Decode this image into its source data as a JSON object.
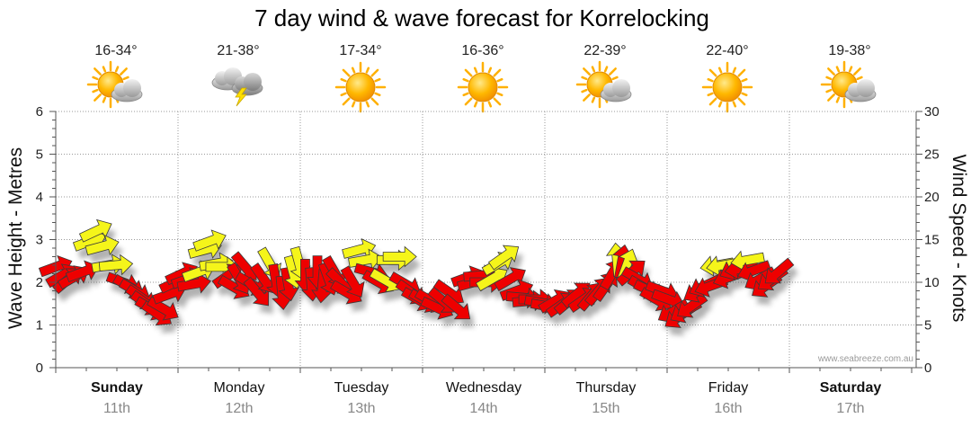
{
  "chart_data": {
    "type": "scatter",
    "title": "7 day wind & wave forecast for Korrelocking",
    "y_left": {
      "label": "Wave Height - Metres",
      "range": [
        0,
        6
      ],
      "ticks": [
        0,
        1,
        2,
        3,
        4,
        5,
        6
      ]
    },
    "y_right": {
      "label": "Wind Speed - Knots",
      "range": [
        0,
        30
      ],
      "ticks": [
        0,
        5,
        10,
        15,
        20,
        25,
        30
      ]
    },
    "grid": true,
    "days": [
      {
        "name": "Sunday",
        "date": "11th",
        "temp": "16-34°",
        "icon": "sun-cloud-icon",
        "bold": true
      },
      {
        "name": "Monday",
        "date": "12th",
        "temp": "21-38°",
        "icon": "storm-cloud-icon",
        "bold": false
      },
      {
        "name": "Tuesday",
        "date": "13th",
        "temp": "17-34°",
        "icon": "sun-icon",
        "bold": false
      },
      {
        "name": "Wednesday",
        "date": "14th",
        "temp": "16-36°",
        "icon": "sun-icon",
        "bold": false
      },
      {
        "name": "Thursday",
        "date": "15th",
        "temp": "22-39°",
        "icon": "sun-cloud-icon",
        "bold": false
      },
      {
        "name": "Friday",
        "date": "16th",
        "temp": "22-40°",
        "icon": "sun-icon",
        "bold": false
      },
      {
        "name": "Saturday",
        "date": "17th",
        "temp": "19-38°",
        "icon": "sun-cloud-icon",
        "bold": true
      }
    ],
    "arrow_colors": {
      "strong": "#ee0000",
      "moderate": "#f5f51a"
    },
    "wind_series": [
      {
        "t": 0.0,
        "kts": 11.8,
        "dir": 250,
        "c": "strong"
      },
      {
        "t": 0.05,
        "kts": 10.8,
        "dir": 240,
        "c": "strong"
      },
      {
        "t": 0.1,
        "kts": 10.3,
        "dir": 230,
        "c": "strong"
      },
      {
        "t": 0.15,
        "kts": 10.6,
        "dir": 240,
        "c": "strong"
      },
      {
        "t": 0.22,
        "kts": 11.2,
        "dir": 250,
        "c": "strong"
      },
      {
        "t": 0.28,
        "kts": 14.8,
        "dir": 250,
        "c": "moderate"
      },
      {
        "t": 0.33,
        "kts": 16.0,
        "dir": 245,
        "c": "moderate"
      },
      {
        "t": 0.38,
        "kts": 14.2,
        "dir": 255,
        "c": "moderate"
      },
      {
        "t": 0.43,
        "kts": 12.0,
        "dir": 260,
        "c": "moderate"
      },
      {
        "t": 0.49,
        "kts": 12.0,
        "dir": 265,
        "c": "moderate"
      },
      {
        "t": 0.55,
        "kts": 10.0,
        "dir": 290,
        "c": "strong"
      },
      {
        "t": 0.6,
        "kts": 9.5,
        "dir": 300,
        "c": "strong"
      },
      {
        "t": 0.65,
        "kts": 9.0,
        "dir": 300,
        "c": "strong"
      },
      {
        "t": 0.7,
        "kts": 8.2,
        "dir": 305,
        "c": "strong"
      },
      {
        "t": 0.74,
        "kts": 7.5,
        "dir": 305,
        "c": "strong"
      },
      {
        "t": 0.78,
        "kts": 6.9,
        "dir": 300,
        "c": "strong"
      },
      {
        "t": 0.83,
        "kts": 6.3,
        "dir": 305,
        "c": "strong"
      },
      {
        "t": 0.88,
        "kts": 6.9,
        "dir": 300,
        "c": "strong"
      },
      {
        "t": 0.93,
        "kts": 8.6,
        "dir": 250,
        "c": "strong"
      },
      {
        "t": 0.98,
        "kts": 10.0,
        "dir": 245,
        "c": "strong"
      },
      {
        "t": 1.03,
        "kts": 11.0,
        "dir": 245,
        "c": "strong"
      },
      {
        "t": 1.08,
        "kts": 10.4,
        "dir": 250,
        "c": "strong"
      },
      {
        "t": 1.13,
        "kts": 9.8,
        "dir": 260,
        "c": "strong"
      },
      {
        "t": 1.17,
        "kts": 11.2,
        "dir": 250,
        "c": "moderate"
      },
      {
        "t": 1.22,
        "kts": 13.8,
        "dir": 255,
        "c": "moderate"
      },
      {
        "t": 1.26,
        "kts": 14.8,
        "dir": 250,
        "c": "moderate"
      },
      {
        "t": 1.31,
        "kts": 12.2,
        "dir": 260,
        "c": "moderate"
      },
      {
        "t": 1.36,
        "kts": 11.8,
        "dir": 270,
        "c": "moderate"
      },
      {
        "t": 1.41,
        "kts": 10.8,
        "dir": 235,
        "c": "strong"
      },
      {
        "t": 1.46,
        "kts": 9.4,
        "dir": 300,
        "c": "strong"
      },
      {
        "t": 1.5,
        "kts": 10.4,
        "dir": 330,
        "c": "strong"
      },
      {
        "t": 1.55,
        "kts": 11.8,
        "dir": 320,
        "c": "strong"
      },
      {
        "t": 1.6,
        "kts": 9.8,
        "dir": 300,
        "c": "strong"
      },
      {
        "t": 1.65,
        "kts": 8.8,
        "dir": 320,
        "c": "strong"
      },
      {
        "t": 1.7,
        "kts": 10.4,
        "dir": 325,
        "c": "strong"
      },
      {
        "t": 1.75,
        "kts": 12.2,
        "dir": 330,
        "c": "moderate"
      },
      {
        "t": 1.8,
        "kts": 10.2,
        "dir": 350,
        "c": "strong"
      },
      {
        "t": 1.85,
        "kts": 8.8,
        "dir": 355,
        "c": "strong"
      },
      {
        "t": 1.9,
        "kts": 9.8,
        "dir": 350,
        "c": "strong"
      },
      {
        "t": 1.94,
        "kts": 11.2,
        "dir": 345,
        "c": "moderate"
      },
      {
        "t": 1.99,
        "kts": 12.2,
        "dir": 345,
        "c": "moderate"
      },
      {
        "t": 2.04,
        "kts": 10.8,
        "dir": 0,
        "c": "strong"
      },
      {
        "t": 2.09,
        "kts": 9.8,
        "dir": 355,
        "c": "strong"
      },
      {
        "t": 2.14,
        "kts": 11.2,
        "dir": 0,
        "c": "strong"
      },
      {
        "t": 2.18,
        "kts": 9.6,
        "dir": 5,
        "c": "strong"
      },
      {
        "t": 2.23,
        "kts": 10.4,
        "dir": 340,
        "c": "strong"
      },
      {
        "t": 2.28,
        "kts": 11.2,
        "dir": 330,
        "c": "strong"
      },
      {
        "t": 2.33,
        "kts": 10.0,
        "dir": 315,
        "c": "strong"
      },
      {
        "t": 2.38,
        "kts": 8.8,
        "dir": 300,
        "c": "strong"
      },
      {
        "t": 2.43,
        "kts": 10.0,
        "dir": 330,
        "c": "strong"
      },
      {
        "t": 2.48,
        "kts": 13.8,
        "dir": 255,
        "c": "moderate"
      },
      {
        "t": 2.53,
        "kts": 12.6,
        "dir": 260,
        "c": "moderate"
      },
      {
        "t": 2.58,
        "kts": 11.2,
        "dir": 285,
        "c": "strong"
      },
      {
        "t": 2.64,
        "kts": 10.0,
        "dir": 300,
        "c": "strong"
      },
      {
        "t": 2.7,
        "kts": 10.2,
        "dir": 300,
        "c": "moderate"
      },
      {
        "t": 2.76,
        "kts": 12.6,
        "dir": 270,
        "c": "moderate"
      },
      {
        "t": 2.81,
        "kts": 13.0,
        "dir": 270,
        "c": "moderate"
      },
      {
        "t": 2.86,
        "kts": 9.8,
        "dir": 300,
        "c": "strong"
      },
      {
        "t": 2.91,
        "kts": 8.8,
        "dir": 305,
        "c": "strong"
      },
      {
        "t": 2.96,
        "kts": 8.0,
        "dir": 300,
        "c": "strong"
      },
      {
        "t": 3.02,
        "kts": 7.8,
        "dir": 300,
        "c": "strong"
      },
      {
        "t": 3.07,
        "kts": 7.8,
        "dir": 300,
        "c": "strong"
      },
      {
        "t": 3.12,
        "kts": 7.0,
        "dir": 295,
        "c": "strong"
      },
      {
        "t": 3.17,
        "kts": 7.8,
        "dir": 310,
        "c": "strong"
      },
      {
        "t": 3.22,
        "kts": 8.8,
        "dir": 305,
        "c": "strong"
      },
      {
        "t": 3.28,
        "kts": 7.0,
        "dir": 310,
        "c": "strong"
      },
      {
        "t": 3.37,
        "kts": 10.6,
        "dir": 250,
        "c": "strong"
      },
      {
        "t": 3.42,
        "kts": 10.0,
        "dir": 255,
        "c": "strong"
      },
      {
        "t": 3.47,
        "kts": 10.8,
        "dir": 265,
        "c": "strong"
      },
      {
        "t": 3.52,
        "kts": 10.0,
        "dir": 270,
        "c": "strong"
      },
      {
        "t": 3.57,
        "kts": 10.4,
        "dir": 240,
        "c": "moderate"
      },
      {
        "t": 3.62,
        "kts": 12.2,
        "dir": 240,
        "c": "moderate"
      },
      {
        "t": 3.67,
        "kts": 13.0,
        "dir": 235,
        "c": "moderate"
      },
      {
        "t": 3.72,
        "kts": 10.4,
        "dir": 240,
        "c": "strong"
      },
      {
        "t": 3.77,
        "kts": 9.0,
        "dir": 250,
        "c": "strong"
      },
      {
        "t": 3.82,
        "kts": 8.2,
        "dir": 275,
        "c": "strong"
      },
      {
        "t": 3.87,
        "kts": 7.8,
        "dir": 265,
        "c": "strong"
      },
      {
        "t": 3.92,
        "kts": 8.0,
        "dir": 270,
        "c": "strong"
      },
      {
        "t": 3.97,
        "kts": 7.6,
        "dir": 280,
        "c": "strong"
      },
      {
        "t": 4.02,
        "kts": 7.2,
        "dir": 280,
        "c": "strong"
      },
      {
        "t": 4.08,
        "kts": 7.8,
        "dir": 240,
        "c": "strong"
      },
      {
        "t": 4.14,
        "kts": 7.4,
        "dir": 235,
        "c": "strong"
      },
      {
        "t": 4.2,
        "kts": 7.8,
        "dir": 230,
        "c": "strong"
      },
      {
        "t": 4.26,
        "kts": 8.6,
        "dir": 230,
        "c": "strong"
      },
      {
        "t": 4.32,
        "kts": 8.0,
        "dir": 235,
        "c": "strong"
      },
      {
        "t": 4.38,
        "kts": 8.4,
        "dir": 220,
        "c": "strong"
      },
      {
        "t": 4.44,
        "kts": 9.0,
        "dir": 220,
        "c": "strong"
      },
      {
        "t": 4.5,
        "kts": 9.6,
        "dir": 215,
        "c": "strong"
      },
      {
        "t": 4.55,
        "kts": 11.0,
        "dir": 210,
        "c": "strong"
      },
      {
        "t": 4.59,
        "kts": 12.6,
        "dir": 175,
        "c": "moderate"
      },
      {
        "t": 4.63,
        "kts": 12.4,
        "dir": 190,
        "c": "strong"
      },
      {
        "t": 4.67,
        "kts": 12.0,
        "dir": 200,
        "c": "moderate"
      },
      {
        "t": 4.71,
        "kts": 11.2,
        "dir": 230,
        "c": "strong"
      },
      {
        "t": 4.76,
        "kts": 10.4,
        "dir": 300,
        "c": "strong"
      },
      {
        "t": 4.81,
        "kts": 9.4,
        "dir": 300,
        "c": "strong"
      },
      {
        "t": 4.86,
        "kts": 9.0,
        "dir": 295,
        "c": "strong"
      },
      {
        "t": 4.91,
        "kts": 8.0,
        "dir": 300,
        "c": "strong"
      },
      {
        "t": 4.96,
        "kts": 9.0,
        "dir": 290,
        "c": "strong"
      },
      {
        "t": 5.01,
        "kts": 8.0,
        "dir": 290,
        "c": "strong"
      },
      {
        "t": 5.05,
        "kts": 6.6,
        "dir": 60,
        "c": "strong"
      },
      {
        "t": 5.1,
        "kts": 6.0,
        "dir": 55,
        "c": "strong"
      },
      {
        "t": 5.15,
        "kts": 6.6,
        "dir": 60,
        "c": "strong"
      },
      {
        "t": 5.2,
        "kts": 7.2,
        "dir": 55,
        "c": "strong"
      },
      {
        "t": 5.26,
        "kts": 9.0,
        "dir": 60,
        "c": "strong"
      },
      {
        "t": 5.31,
        "kts": 9.6,
        "dir": 65,
        "c": "strong"
      },
      {
        "t": 5.36,
        "kts": 9.6,
        "dir": 70,
        "c": "strong"
      },
      {
        "t": 5.41,
        "kts": 12.0,
        "dir": 80,
        "c": "moderate"
      },
      {
        "t": 5.46,
        "kts": 12.0,
        "dir": 80,
        "c": "moderate"
      },
      {
        "t": 5.51,
        "kts": 10.6,
        "dir": 70,
        "c": "strong"
      },
      {
        "t": 5.56,
        "kts": 11.6,
        "dir": 65,
        "c": "strong"
      },
      {
        "t": 5.61,
        "kts": 11.6,
        "dir": 80,
        "c": "strong"
      },
      {
        "t": 5.66,
        "kts": 12.6,
        "dir": 80,
        "c": "moderate"
      },
      {
        "t": 5.71,
        "kts": 11.4,
        "dir": 70,
        "c": "strong"
      },
      {
        "t": 5.76,
        "kts": 10.4,
        "dir": 60,
        "c": "strong"
      },
      {
        "t": 5.81,
        "kts": 9.6,
        "dir": 55,
        "c": "strong"
      },
      {
        "t": 5.86,
        "kts": 10.4,
        "dir": 55,
        "c": "strong"
      },
      {
        "t": 5.91,
        "kts": 11.2,
        "dir": 50,
        "c": "strong"
      }
    ]
  },
  "watermark": "www.seabreeze.com.au"
}
